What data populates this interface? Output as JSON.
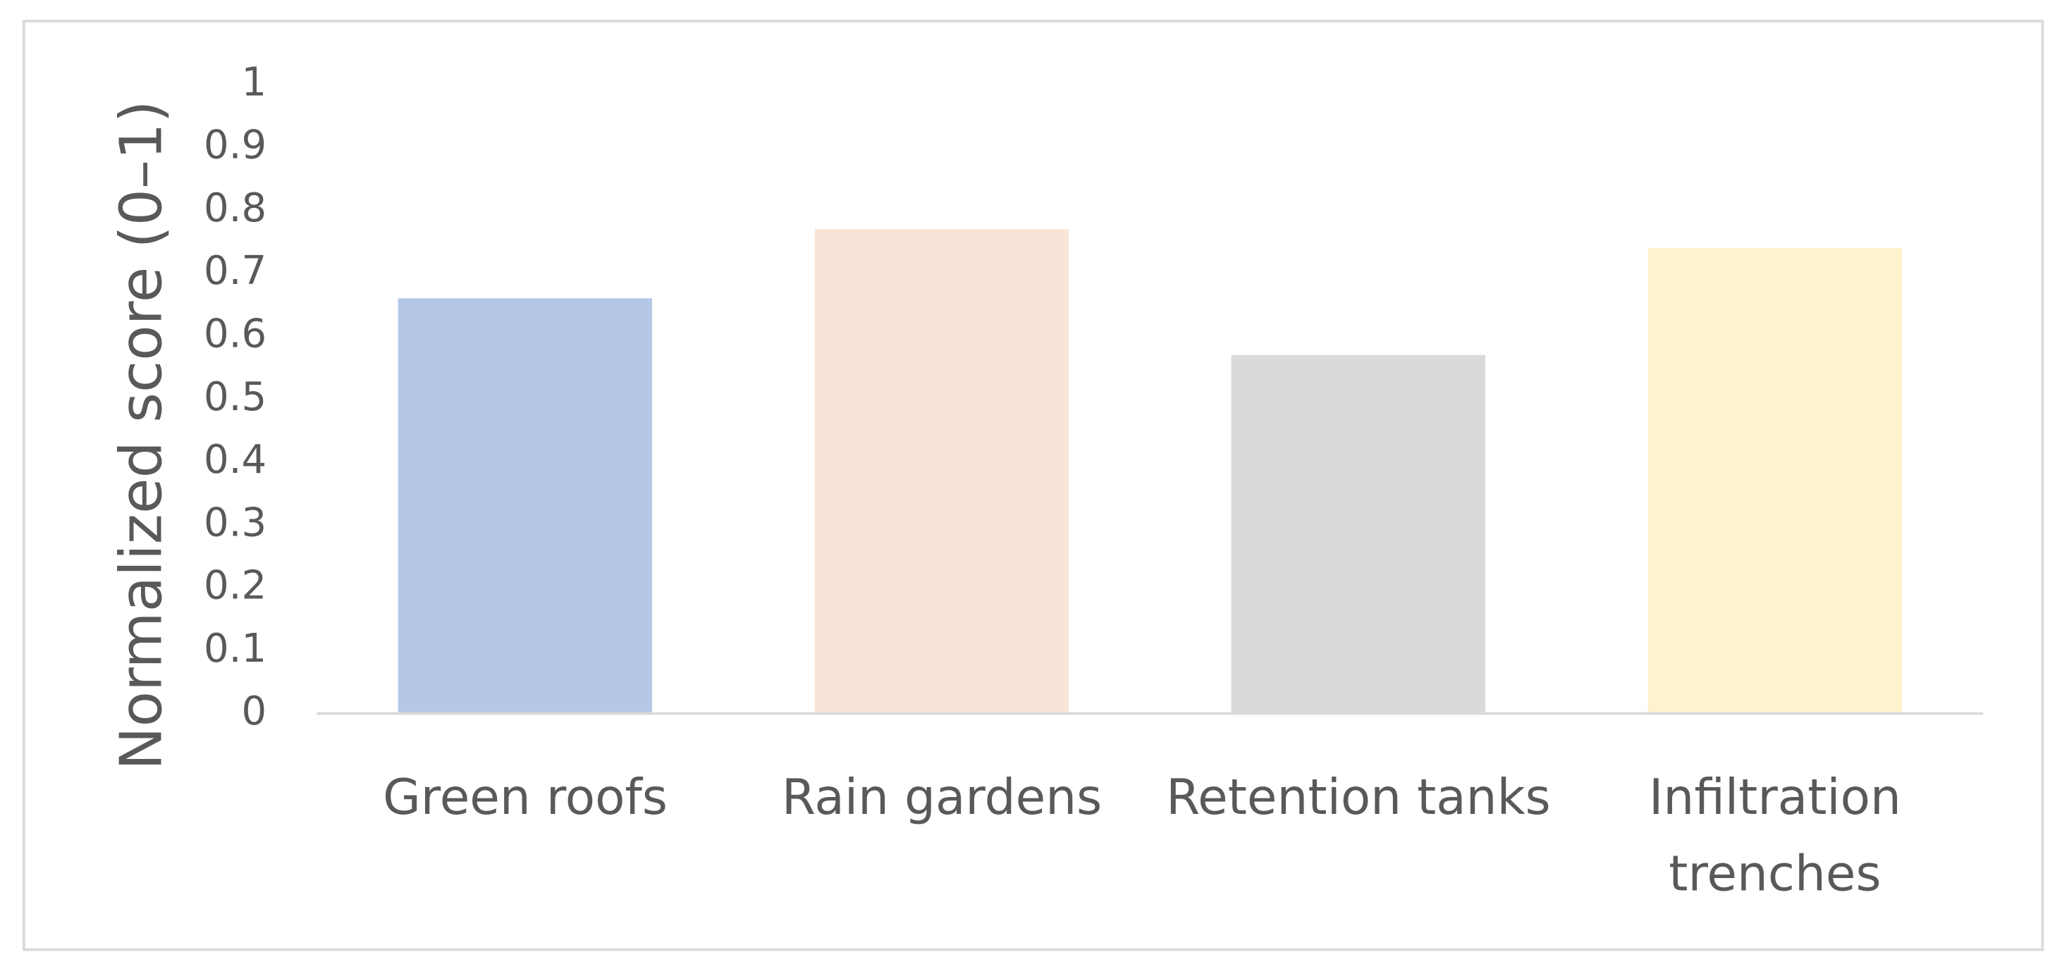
{
  "chart_data": {
    "type": "bar",
    "y_label": "Normalized score (0–1)",
    "categories": [
      "Green roofs",
      "Rain gardens",
      "Retention tanks",
      "Infiltration trenches"
    ],
    "values": [
      0.66,
      0.77,
      0.57,
      0.74
    ],
    "colors": [
      "#b4c7e7",
      "#f8e5d7",
      "#dadada",
      "#fff2cc"
    ],
    "ylim": [
      0,
      1
    ],
    "yticks": [
      0,
      0.1,
      0.2,
      0.3,
      0.4,
      0.5,
      0.6,
      0.7,
      0.8,
      0.9,
      1
    ],
    "grid": false
  }
}
